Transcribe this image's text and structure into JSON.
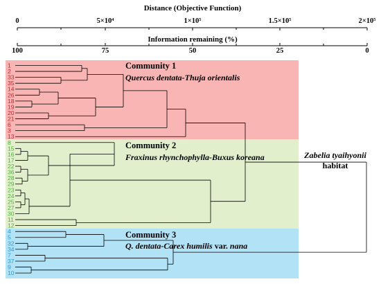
{
  "top_axis": {
    "title": "Distance (Objective Function)",
    "ticks": [
      "0",
      "5×10⁴",
      "1×10⁵",
      "1.5×10⁵",
      "2×10⁵"
    ]
  },
  "info_axis": {
    "title": "Information remaining (%)",
    "ticks": [
      "100",
      "75",
      "50",
      "25",
      "0"
    ]
  },
  "communities": [
    {
      "title": "Community 1",
      "subtitle": "Quercus dentata-Thuja orientalis",
      "color": "#f9b4b4",
      "label_color": "#c0282e",
      "leaves": [
        "1",
        "2",
        "33",
        "35",
        "14",
        "26",
        "18",
        "19",
        "20",
        "21",
        "6",
        "3",
        "13"
      ]
    },
    {
      "title": "Community 2",
      "subtitle": "Fraxinus rhynchophylla-Buxus koreana",
      "color": "#e2efcd",
      "label_color": "#4fae3a",
      "leaves": [
        "8",
        "15",
        "16",
        "17",
        "22",
        "36",
        "28",
        "29",
        "23",
        "24",
        "25",
        "27",
        "30",
        "11",
        "12"
      ]
    },
    {
      "title": "Community 3",
      "subtitle_italic": "Q. dentata-Carex humilis",
      "subtitle_plain": " var. ",
      "subtitle_italic2": "nana",
      "color": "#b2e2f5",
      "label_color": "#2f98d1",
      "leaves": [
        "4",
        "5",
        "32",
        "34",
        "7",
        "37",
        "9",
        "10"
      ]
    }
  ],
  "habitat_label": {
    "species": "Zabelia tyaihyonii",
    "word": "habitat"
  }
}
